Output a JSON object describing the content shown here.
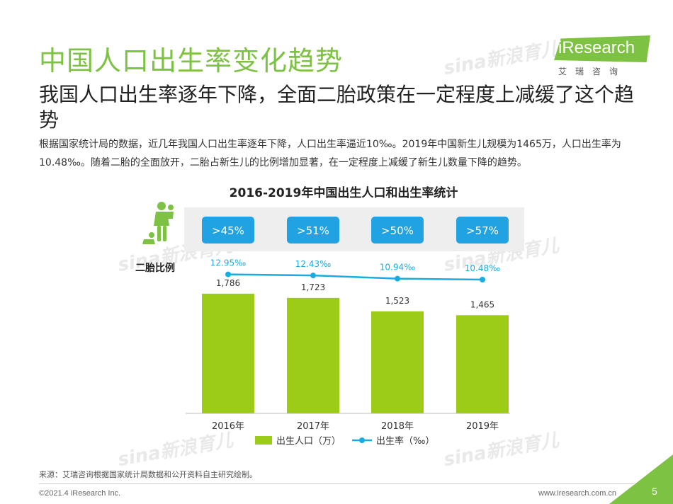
{
  "header": {
    "title": "中国人口出生率变化趋势",
    "logo_text": "iResearch",
    "logo_sub": "艾瑞咨询"
  },
  "subtitle": "我国人口出生率逐年下降，全面二胎政策在一定程度上减缓了这个趋势",
  "description": "根据国家统计局的数据，近几年我国人口出生率逐年下降，人口出生率逼近10‰。2019年中国新生儿规模为1465万，人口出生率为10.48‰。随着二胎的全面放开，二胎占新生儿的比例增加显著，在一定程度上减缓了新生儿数量下降的趋势。",
  "watermark_text": "sina新浪育儿",
  "colors": {
    "accent": "#7dc242",
    "bar": "#9ccb18",
    "line": "#1aabe0",
    "badge": "#21a3e3",
    "band": "#eeeeee"
  },
  "chart_data": {
    "type": "bar",
    "title": "2016-2019年中国出生人口和出生率统计",
    "categories": [
      "2016年",
      "2017年",
      "2018年",
      "2019年"
    ],
    "series": [
      {
        "name": "出生人口（万）",
        "type": "bar",
        "values": [
          1786,
          1723,
          1523,
          1465
        ],
        "labels": [
          "1,786",
          "1,723",
          "1,523",
          "1,465"
        ]
      },
      {
        "name": "出生率（‰）",
        "type": "line",
        "values": [
          12.95,
          12.43,
          10.94,
          10.48
        ],
        "labels": [
          "12.95‰",
          "12.43‰",
          "10.94‰",
          "10.48‰"
        ]
      }
    ],
    "second_child": {
      "label": "二胎比例",
      "values": [
        ">45%",
        ">51%",
        ">50%",
        ">57%"
      ]
    },
    "ylim": [
      0,
      2000
    ],
    "rate_ylim": [
      0,
      14
    ],
    "legend_position": "bottom"
  },
  "footer": {
    "source": "来源：艾瑞咨询根据国家统计局数据和公开资料自主研究绘制。",
    "copyright": "©2021.4 iResearch Inc.",
    "website": "www.iresearch.com.cn",
    "page_number": "5"
  }
}
